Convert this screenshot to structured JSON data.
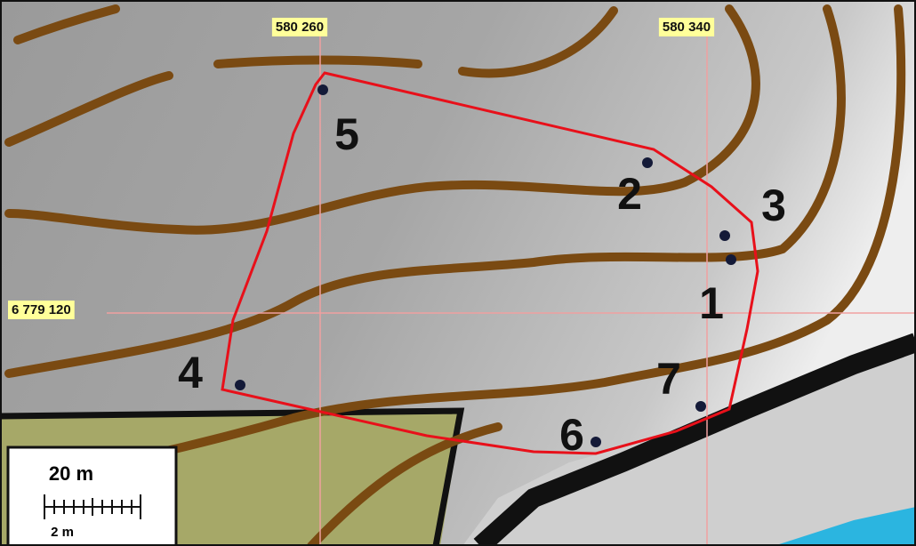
{
  "grid_labels": {
    "x": [
      "580 260",
      "580 340"
    ],
    "y": [
      "6 779 120"
    ]
  },
  "points": [
    {
      "label": "1"
    },
    {
      "label": "2"
    },
    {
      "label": "3"
    },
    {
      "label": "4"
    },
    {
      "label": "5"
    },
    {
      "label": "6"
    },
    {
      "label": "7"
    }
  ],
  "scale_bar": {
    "major": "20 m",
    "minor": "2 m"
  }
}
